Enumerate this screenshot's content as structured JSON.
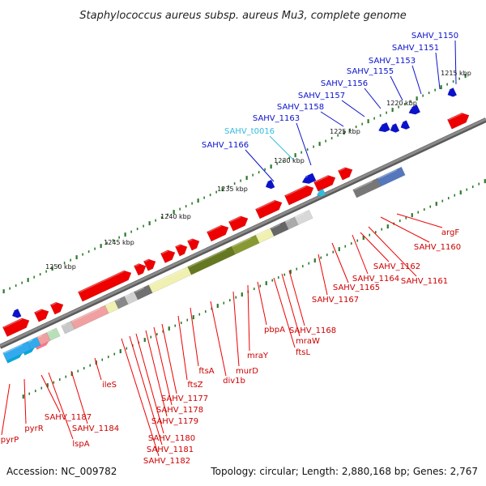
{
  "title": "Staphylococcus aureus subsp. aureus Mu3, complete genome",
  "footer": {
    "accession": "Accession: NC_009782",
    "summary": "Topology: circular; Length: 2,880,168 bp; Genes: 2,767"
  },
  "colors": {
    "forward_gene": "#ee0000",
    "reverse_gene": "#0a12cc",
    "trna_label": "#33bbdd",
    "backbone": "#8a8a8a",
    "tick": "#2a7a2a"
  },
  "ticks": [
    "1215 kbp",
    "1220 kbp",
    "1225 kbp",
    "1230 kbp",
    "1235 kbp",
    "1240 kbp",
    "1245 kbp",
    "1250 kbp"
  ],
  "outer_labels": [
    {
      "text": "SAHV_1150",
      "color": "#0a12cc"
    },
    {
      "text": "SAHV_1151",
      "color": "#0a12cc"
    },
    {
      "text": "SAHV_1153",
      "color": "#0a12cc"
    },
    {
      "text": "SAHV_1155",
      "color": "#0a12cc"
    },
    {
      "text": "SAHV_1156",
      "color": "#0a12cc"
    },
    {
      "text": "SAHV_1157",
      "color": "#0a12cc"
    },
    {
      "text": "SAHV_1158",
      "color": "#0a12cc"
    },
    {
      "text": "SAHV_1163",
      "color": "#0a12cc"
    },
    {
      "text": "SAHV_t0016",
      "color": "#33bbdd"
    },
    {
      "text": "SAHV_1166",
      "color": "#0a12cc"
    }
  ],
  "inner_labels": [
    "argF",
    "SAHV_1160",
    "SAHV_1161",
    "SAHV_1162",
    "SAHV_1164",
    "SAHV_1165",
    "SAHV_1167",
    "SAHV_1168",
    "mraW",
    "ftsL",
    "pbpA",
    "mraY",
    "murD",
    "div1b",
    "ftsA",
    "ftsZ",
    "SAHV_1177",
    "SAHV_1178",
    "SAHV_1179",
    "SAHV_1180",
    "SAHV_1181",
    "SAHV_1182",
    "ileS",
    "SAHV_1184",
    "lspA",
    "SAHV_1187",
    "pyrR",
    "pyrP"
  ]
}
